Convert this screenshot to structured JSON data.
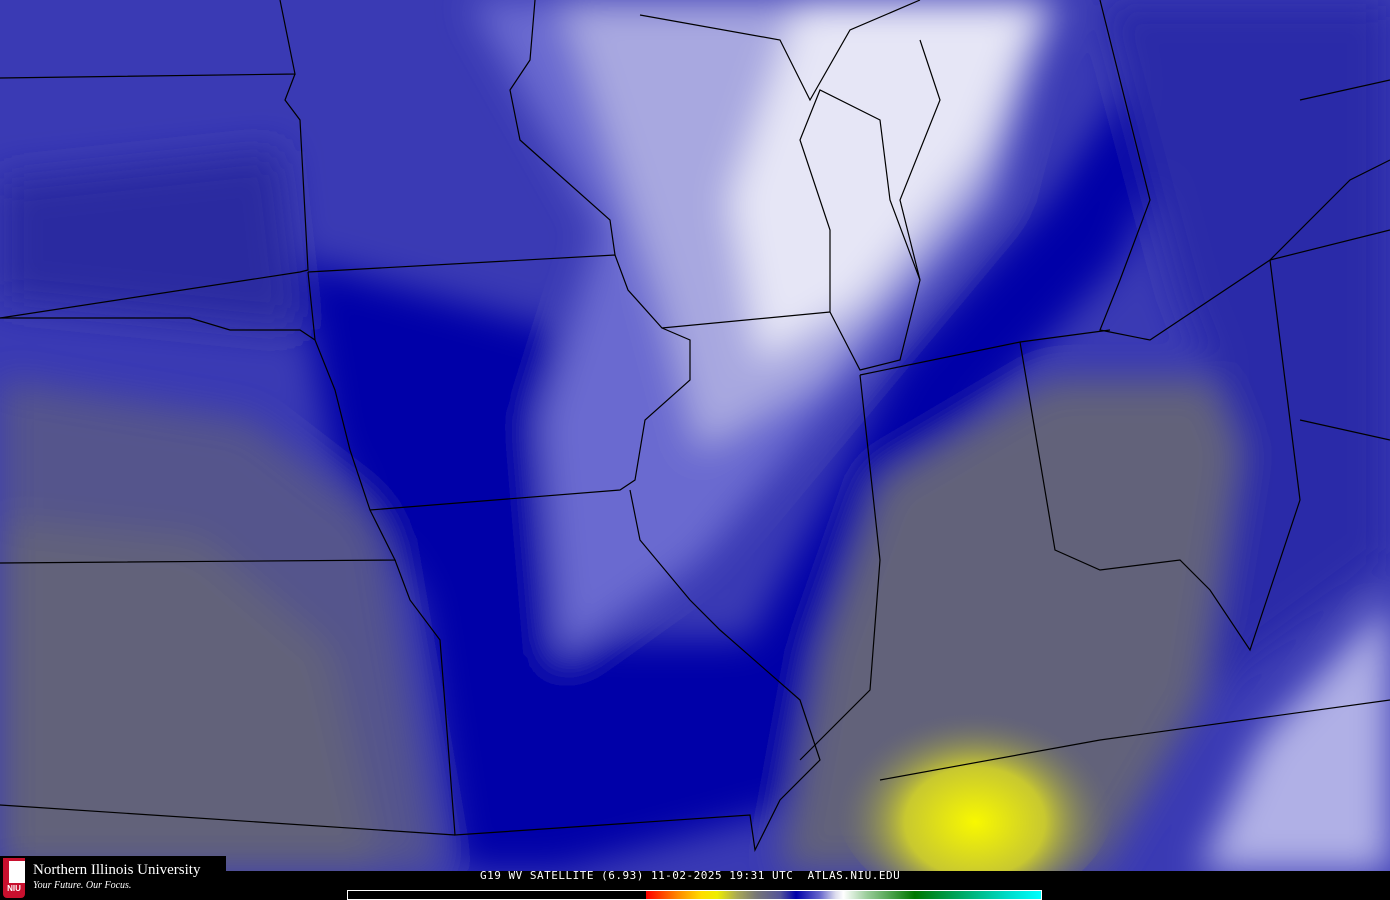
{
  "caption": "G19 WV SATELLITE (6.93) 11-02-2025 19:31 UTC  ATLAS.NIU.EDU",
  "logo": {
    "name": "Northern Illinois University",
    "tagline": "Your Future. Our Focus.",
    "mark": "NIU"
  },
  "colors": {
    "deep_blue": "#0000a8",
    "blue": "#3838b8",
    "light_blue": "#6a6ad0",
    "pale": "#a8a8e0",
    "white": "#eeeefa",
    "gray_purple": "#54548c",
    "gray": "#6a6a70",
    "yellow": "#eeee00"
  },
  "color_scale": {
    "visible": true
  }
}
